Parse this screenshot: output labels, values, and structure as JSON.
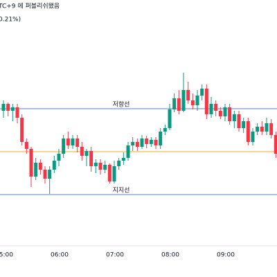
{
  "chart_data": {
    "type": "candlestick",
    "title": "TC+9 에 퍼블리쉬됐음",
    "subtitle": "0.21%)",
    "subtitle_color": "#089981",
    "up_color": "#089981",
    "down_color": "#f23645",
    "categories": [
      "05:00",
      null,
      null,
      null,
      null,
      null,
      null,
      null,
      null,
      null,
      null,
      null,
      "06:00",
      null,
      null,
      null,
      null,
      null,
      null,
      null,
      null,
      null,
      null,
      null,
      "07:00",
      null,
      null,
      null,
      null,
      null,
      null,
      null,
      null,
      null,
      null,
      null,
      "08:00",
      null,
      null,
      null,
      null,
      null,
      null,
      null,
      null,
      null,
      null,
      null,
      "09:00",
      null,
      null,
      null,
      null,
      null,
      null,
      null,
      null,
      null,
      null,
      null
    ],
    "open": [
      240,
      250,
      240,
      245,
      230,
      195,
      185,
      145,
      165,
      155,
      142,
      155,
      168,
      178,
      200,
      190,
      200,
      188,
      175,
      182,
      160,
      165,
      155,
      162,
      138,
      160,
      168,
      172,
      190,
      195,
      188,
      200,
      192,
      198,
      190,
      210,
      215,
      242,
      258,
      240,
      270,
      255,
      248,
      262,
      272,
      235,
      250,
      240,
      232,
      245,
      225,
      235,
      215,
      225,
      195,
      210,
      217,
      210,
      222,
      205
    ],
    "high": [
      255,
      252,
      250,
      250,
      235,
      200,
      188,
      172,
      170,
      160,
      160,
      175,
      185,
      205,
      210,
      205,
      205,
      195,
      185,
      188,
      170,
      170,
      168,
      164,
      168,
      172,
      180,
      195,
      202,
      200,
      205,
      204,
      202,
      202,
      215,
      220,
      250,
      265,
      270,
      295,
      282,
      265,
      270,
      278,
      278,
      260,
      255,
      245,
      250,
      250,
      240,
      240,
      230,
      230,
      215,
      222,
      225,
      230,
      228,
      210
    ],
    "low": [
      230,
      232,
      225,
      222,
      190,
      178,
      130,
      140,
      148,
      135,
      120,
      150,
      160,
      172,
      185,
      185,
      180,
      168,
      160,
      152,
      150,
      148,
      150,
      135,
      135,
      155,
      162,
      168,
      182,
      182,
      185,
      186,
      188,
      185,
      185,
      205,
      212,
      238,
      235,
      238,
      250,
      242,
      240,
      255,
      228,
      230,
      232,
      228,
      225,
      220,
      215,
      210,
      208,
      190,
      190,
      205,
      205,
      205,
      200,
      172
    ],
    "close": [
      250,
      240,
      245,
      230,
      195,
      185,
      145,
      165,
      155,
      142,
      155,
      168,
      178,
      200,
      190,
      200,
      188,
      175,
      182,
      160,
      165,
      155,
      162,
      138,
      160,
      168,
      172,
      190,
      195,
      188,
      200,
      192,
      198,
      190,
      210,
      215,
      242,
      258,
      240,
      270,
      255,
      248,
      262,
      272,
      235,
      250,
      240,
      232,
      245,
      225,
      235,
      215,
      225,
      195,
      210,
      217,
      210,
      222,
      205,
      178
    ],
    "annotations": [
      {
        "label": "저항선",
        "value": 243,
        "color": "#5b7bd5"
      },
      {
        "value": 181,
        "color": "#f5a623"
      },
      {
        "label": "지지선",
        "value": 119,
        "color": "#5b7bd5"
      }
    ],
    "ylim": [
      45,
      400
    ]
  }
}
